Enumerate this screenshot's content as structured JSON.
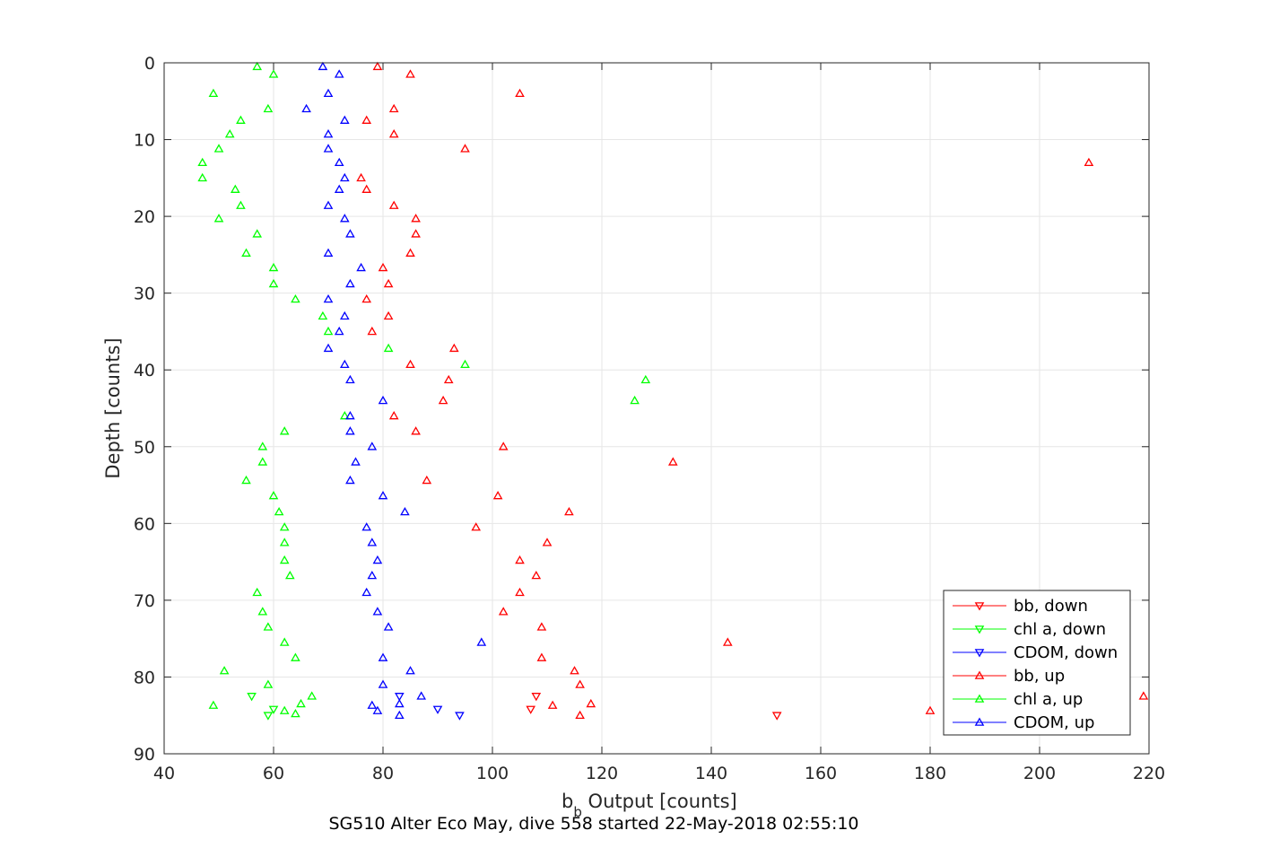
{
  "chart_data": {
    "type": "scatter",
    "xlabel_main": "b",
    "xlabel_sub": "b",
    "xlabel_rest": " Output [counts]",
    "ylabel": "Depth [counts]",
    "caption": "SG510 Alter Eco May, dive 558 started 22-May-2018 02:55:10",
    "xlim": [
      40,
      220
    ],
    "ylim": [
      0,
      90
    ],
    "y_reversed": true,
    "grid": true,
    "legend_position": "bottom-right",
    "x_ticks": [
      40,
      60,
      80,
      100,
      120,
      140,
      160,
      180,
      200,
      220
    ],
    "y_ticks": [
      0,
      10,
      20,
      30,
      40,
      50,
      60,
      70,
      80,
      90
    ],
    "series": [
      {
        "name": "bb, down",
        "color": "#ff0000",
        "marker": "triangle-down",
        "points": [
          [
            108,
            82.5
          ],
          [
            107,
            84.2
          ],
          [
            152,
            85
          ]
        ]
      },
      {
        "name": "chl a, down",
        "color": "#00ff00",
        "marker": "triangle-down",
        "points": [
          [
            56,
            82.5
          ],
          [
            60,
            84.2
          ],
          [
            59,
            85
          ]
        ]
      },
      {
        "name": "CDOM, down",
        "color": "#0000ff",
        "marker": "triangle-down",
        "points": [
          [
            83,
            82.5
          ],
          [
            90,
            84.2
          ],
          [
            94,
            85
          ]
        ]
      },
      {
        "name": "bb, up",
        "color": "#ff0000",
        "marker": "triangle-up",
        "points": [
          [
            79,
            0.5
          ],
          [
            85,
            1.5
          ],
          [
            105,
            4
          ],
          [
            82,
            6
          ],
          [
            77,
            7.5
          ],
          [
            82,
            9.3
          ],
          [
            95,
            11.2
          ],
          [
            209,
            13
          ],
          [
            76,
            15
          ],
          [
            77,
            16.5
          ],
          [
            82,
            18.6
          ],
          [
            86,
            20.3
          ],
          [
            86,
            22.3
          ],
          [
            85,
            24.8
          ],
          [
            80,
            26.7
          ],
          [
            81,
            28.8
          ],
          [
            77,
            30.8
          ],
          [
            81,
            33
          ],
          [
            78,
            35
          ],
          [
            93,
            37.2
          ],
          [
            85,
            39.3
          ],
          [
            92,
            41.3
          ],
          [
            91,
            44
          ],
          [
            82,
            46
          ],
          [
            86,
            48
          ],
          [
            102,
            50
          ],
          [
            133,
            52
          ],
          [
            88,
            54.4
          ],
          [
            101,
            56.4
          ],
          [
            114,
            58.5
          ],
          [
            97,
            60.5
          ],
          [
            110,
            62.5
          ],
          [
            105,
            64.8
          ],
          [
            108,
            66.8
          ],
          [
            105,
            69
          ],
          [
            102,
            71.5
          ],
          [
            109,
            73.5
          ],
          [
            143,
            75.5
          ],
          [
            109,
            77.5
          ],
          [
            115,
            79.2
          ],
          [
            116,
            81
          ],
          [
            219,
            82.5
          ],
          [
            118,
            83.5
          ],
          [
            111,
            83.7
          ],
          [
            180,
            84.4
          ],
          [
            116,
            85
          ]
        ]
      },
      {
        "name": "chl a, up",
        "color": "#00ff00",
        "marker": "triangle-up",
        "points": [
          [
            57,
            0.5
          ],
          [
            60,
            1.5
          ],
          [
            49,
            4
          ],
          [
            59,
            6
          ],
          [
            54,
            7.5
          ],
          [
            52,
            9.3
          ],
          [
            50,
            11.2
          ],
          [
            47,
            13
          ],
          [
            47,
            15
          ],
          [
            53,
            16.5
          ],
          [
            54,
            18.6
          ],
          [
            50,
            20.3
          ],
          [
            57,
            22.3
          ],
          [
            55,
            24.8
          ],
          [
            60,
            26.7
          ],
          [
            60,
            28.8
          ],
          [
            64,
            30.8
          ],
          [
            69,
            33
          ],
          [
            70,
            35
          ],
          [
            81,
            37.2
          ],
          [
            95,
            39.3
          ],
          [
            128,
            41.3
          ],
          [
            126,
            44
          ],
          [
            73,
            46
          ],
          [
            62,
            48
          ],
          [
            58,
            50
          ],
          [
            58,
            52
          ],
          [
            55,
            54.4
          ],
          [
            60,
            56.4
          ],
          [
            61,
            58.5
          ],
          [
            62,
            60.5
          ],
          [
            62,
            62.5
          ],
          [
            62,
            64.8
          ],
          [
            63,
            66.8
          ],
          [
            57,
            69
          ],
          [
            58,
            71.5
          ],
          [
            59,
            73.5
          ],
          [
            62,
            75.5
          ],
          [
            64,
            77.5
          ],
          [
            51,
            79.2
          ],
          [
            59,
            81
          ],
          [
            67,
            82.5
          ],
          [
            65,
            83.5
          ],
          [
            49,
            83.7
          ],
          [
            62,
            84.4
          ],
          [
            64,
            84.8
          ]
        ]
      },
      {
        "name": "CDOM, up",
        "color": "#0000ff",
        "marker": "triangle-up",
        "points": [
          [
            69,
            0.5
          ],
          [
            72,
            1.5
          ],
          [
            70,
            4
          ],
          [
            66,
            6
          ],
          [
            73,
            7.5
          ],
          [
            70,
            9.3
          ],
          [
            70,
            11.2
          ],
          [
            72,
            13
          ],
          [
            73,
            15
          ],
          [
            72,
            16.5
          ],
          [
            70,
            18.6
          ],
          [
            73,
            20.3
          ],
          [
            74,
            22.3
          ],
          [
            70,
            24.8
          ],
          [
            76,
            26.7
          ],
          [
            74,
            28.8
          ],
          [
            70,
            30.8
          ],
          [
            73,
            33
          ],
          [
            72,
            35
          ],
          [
            70,
            37.2
          ],
          [
            73,
            39.3
          ],
          [
            74,
            41.3
          ],
          [
            80,
            44
          ],
          [
            74,
            46
          ],
          [
            74,
            48
          ],
          [
            78,
            50
          ],
          [
            75,
            52
          ],
          [
            74,
            54.4
          ],
          [
            80,
            56.4
          ],
          [
            84,
            58.5
          ],
          [
            77,
            60.5
          ],
          [
            78,
            62.5
          ],
          [
            79,
            64.8
          ],
          [
            78,
            66.8
          ],
          [
            77,
            69
          ],
          [
            79,
            71.5
          ],
          [
            81,
            73.5
          ],
          [
            98,
            75.5
          ],
          [
            80,
            77.5
          ],
          [
            85,
            79.2
          ],
          [
            80,
            81
          ],
          [
            87,
            82.5
          ],
          [
            83,
            83.5
          ],
          [
            78,
            83.7
          ],
          [
            79,
            84.4
          ],
          [
            83,
            85
          ]
        ]
      }
    ]
  }
}
